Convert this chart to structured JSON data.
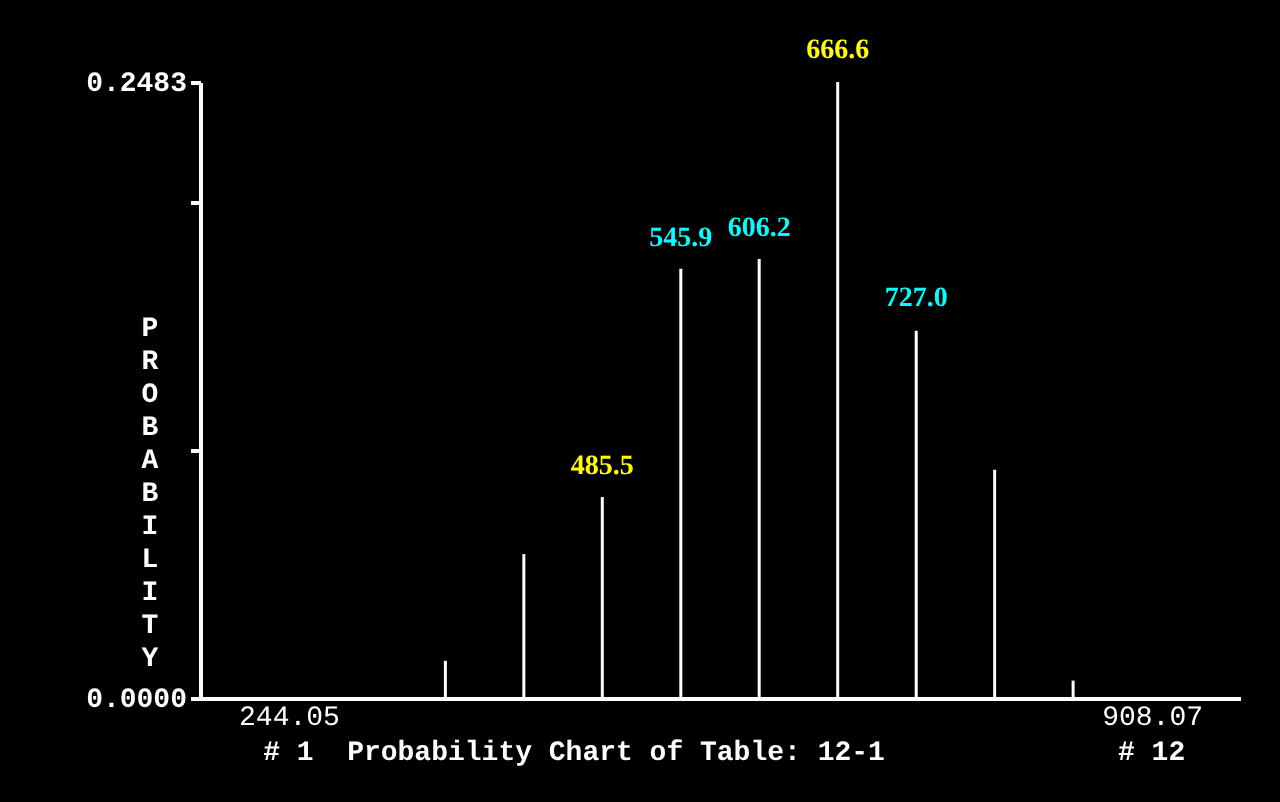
{
  "chart_data": {
    "type": "bar",
    "title": "Probability Chart of Table: 12-1",
    "ylabel": "PROBABILITY",
    "x": [
      244.05,
      304.42,
      364.78,
      425.15,
      485.5,
      545.9,
      606.2,
      666.6,
      727.0,
      787.34,
      847.7,
      908.07
    ],
    "values": [
      0,
      0,
      0.015,
      0.058,
      0.081,
      0.173,
      0.177,
      0.2483,
      0.148,
      0.092,
      0.007,
      0
    ],
    "color": "#ffffff",
    "xlim": [
      183.7,
      968.4
    ],
    "xticks": [
      244.05,
      908.07
    ],
    "ylim": [
      0,
      0.2483
    ],
    "yticks": [
      {
        "value": 0,
        "label": "0.0000"
      },
      {
        "value": 0.1,
        "label": null
      },
      {
        "value": 0.2,
        "label": null
      },
      {
        "value": 0.2483,
        "label": "0.2483"
      }
    ],
    "annotations": [
      {
        "text": "485.5",
        "x": 485.5,
        "y": 0.0808
      },
      {
        "text": "545.9",
        "x": 545.9,
        "y": 0.1726
      },
      {
        "text": "606.2",
        "x": 606.2,
        "y": 0.1766
      },
      {
        "text": "666.6",
        "x": 666.6,
        "y": 0.2483
      },
      {
        "text": "727.0",
        "x": 727.0,
        "y": 0.1484
      },
      "# 1",
      "# 12"
    ],
    "grid": false
  }
}
